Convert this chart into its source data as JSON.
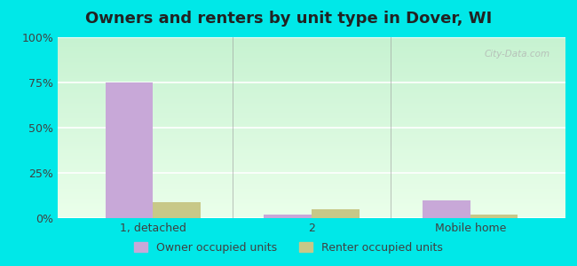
{
  "title": "Owners and renters by unit type in Dover, WI",
  "categories": [
    "1, detached",
    "2",
    "Mobile home"
  ],
  "owner_values": [
    75,
    2,
    10
  ],
  "renter_values": [
    9,
    5,
    2
  ],
  "owner_color": "#c8a8d8",
  "renter_color": "#c8c888",
  "ylim": [
    0,
    100
  ],
  "yticks": [
    0,
    25,
    50,
    75,
    100
  ],
  "ytick_labels": [
    "0%",
    "25%",
    "50%",
    "75%",
    "100%"
  ],
  "legend_owner": "Owner occupied units",
  "legend_renter": "Renter occupied units",
  "bar_width": 0.3,
  "outer_bg": "#00e8e8",
  "title_fontsize": 13,
  "watermark": "City-Data.com"
}
